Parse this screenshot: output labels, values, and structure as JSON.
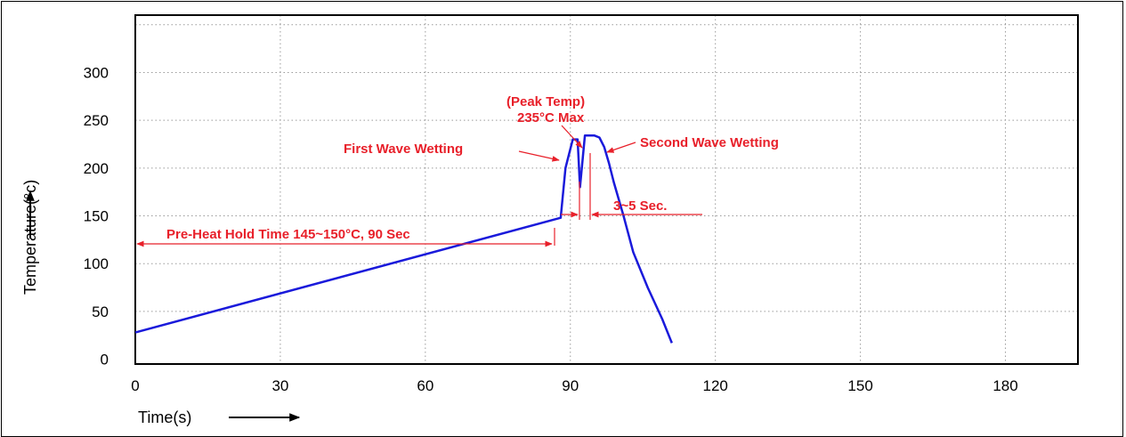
{
  "chart_data": {
    "type": "line",
    "title": "",
    "xlabel": "Time(s)",
    "ylabel": "Temperature(°c)",
    "xlim": [
      0,
      195
    ],
    "ylim": [
      -5,
      360
    ],
    "x_ticks": [
      "0",
      "30",
      "60",
      "90",
      "120",
      "150",
      "180"
    ],
    "y_ticks": [
      "0",
      "50",
      "100",
      "150",
      "200",
      "250",
      "300"
    ],
    "grid": true,
    "series": [
      {
        "color": "#1a1adb",
        "x": [
          0,
          88,
          89,
          90.5,
          91.5,
          92,
          93,
          94,
          95,
          96,
          97,
          98,
          99,
          101,
          103,
          106,
          109,
          111
        ],
        "y": [
          28,
          148,
          200,
          230,
          230,
          180,
          234,
          234,
          234,
          232,
          222,
          205,
          185,
          150,
          112,
          75,
          42,
          17
        ]
      }
    ],
    "annotations": {
      "preheat": "Pre-Heat Hold Time 145~150°C, 90 Sec",
      "first_wave": "First Wave Wetting",
      "peak_title": "(Peak Temp)",
      "peak_value": "235°C Max",
      "second_wave": "Second Wave Wetting",
      "duration": "3~5 Sec."
    },
    "colors": {
      "curve": "#1a1adb",
      "annotation": "#e8202a",
      "grid": "#9a9a9a"
    }
  }
}
